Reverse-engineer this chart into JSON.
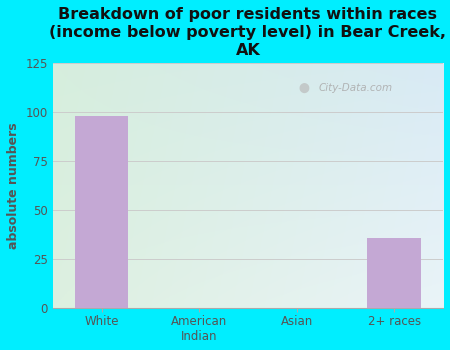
{
  "title": "Breakdown of poor residents within races\n(income below poverty level) in Bear Creek,\nAK",
  "categories": [
    "White",
    "American\nIndian",
    "Asian",
    "2+ races"
  ],
  "values": [
    98,
    0,
    0,
    36
  ],
  "bar_color": "#c4a8d4",
  "ylabel": "absolute numbers",
  "ylim": [
    0,
    125
  ],
  "yticks": [
    0,
    25,
    50,
    75,
    100,
    125
  ],
  "bg_outer": "#00eeff",
  "bg_plot_topleft": "#d6eedd",
  "bg_plot_topright": "#d8eaf5",
  "bg_plot_bottomleft": "#ddf0e0",
  "bg_plot_bottomright": "#eaf4f8",
  "watermark": "City-Data.com",
  "title_fontsize": 11.5,
  "ylabel_fontsize": 9,
  "tick_fontsize": 8.5,
  "ylabel_color": "#555555",
  "tick_color": "#555555",
  "grid_color": "#cccccc"
}
